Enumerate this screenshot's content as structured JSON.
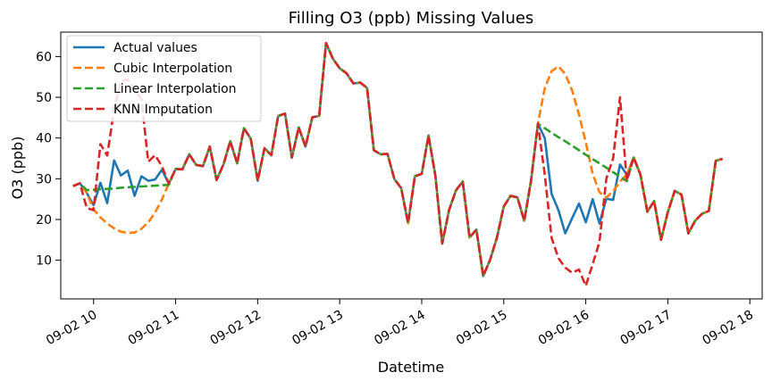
{
  "chart_data": {
    "type": "line",
    "title": "Filling O3 (ppb) Missing Values",
    "xlabel": "Datetime",
    "ylabel": "O3 (ppb)",
    "x_tick_labels": [
      "09-02 10",
      "09-02 11",
      "09-02 12",
      "09-02 13",
      "09-02 14",
      "09-02 15",
      "09-02 16",
      "09-02 17",
      "09-02 18"
    ],
    "y_ticks": [
      10,
      20,
      30,
      40,
      50,
      60
    ],
    "xlim": [
      "2021-09-02 09:36",
      "2021-09-02 18:09"
    ],
    "ylim": [
      0.5,
      66
    ],
    "grid": false,
    "legend_position": "upper left",
    "x": [
      "2021-09-02 09:45",
      "2021-09-02 09:50",
      "2021-09-02 09:55",
      "2021-09-02 10:00",
      "2021-09-02 10:05",
      "2021-09-02 10:10",
      "2021-09-02 10:15",
      "2021-09-02 10:20",
      "2021-09-02 10:25",
      "2021-09-02 10:30",
      "2021-09-02 10:35",
      "2021-09-02 10:40",
      "2021-09-02 10:45",
      "2021-09-02 10:50",
      "2021-09-02 10:55",
      "2021-09-02 11:00",
      "2021-09-02 11:05",
      "2021-09-02 11:10",
      "2021-09-02 11:15",
      "2021-09-02 11:20",
      "2021-09-02 11:25",
      "2021-09-02 11:30",
      "2021-09-02 11:35",
      "2021-09-02 11:40",
      "2021-09-02 11:45",
      "2021-09-02 11:50",
      "2021-09-02 11:55",
      "2021-09-02 12:00",
      "2021-09-02 12:05",
      "2021-09-02 12:10",
      "2021-09-02 12:15",
      "2021-09-02 12:20",
      "2021-09-02 12:25",
      "2021-09-02 12:30",
      "2021-09-02 12:35",
      "2021-09-02 12:40",
      "2021-09-02 12:45",
      "2021-09-02 12:50",
      "2021-09-02 12:55",
      "2021-09-02 13:00",
      "2021-09-02 13:05",
      "2021-09-02 13:10",
      "2021-09-02 13:15",
      "2021-09-02 13:20",
      "2021-09-02 13:25",
      "2021-09-02 13:30",
      "2021-09-02 13:35",
      "2021-09-02 13:40",
      "2021-09-02 13:45",
      "2021-09-02 13:50",
      "2021-09-02 13:55",
      "2021-09-02 14:00",
      "2021-09-02 14:05",
      "2021-09-02 14:10",
      "2021-09-02 14:15",
      "2021-09-02 14:20",
      "2021-09-02 14:25",
      "2021-09-02 14:30",
      "2021-09-02 14:35",
      "2021-09-02 14:40",
      "2021-09-02 14:45",
      "2021-09-02 14:50",
      "2021-09-02 14:55",
      "2021-09-02 15:00",
      "2021-09-02 15:05",
      "2021-09-02 15:10",
      "2021-09-02 15:15",
      "2021-09-02 15:20",
      "2021-09-02 15:25",
      "2021-09-02 15:30",
      "2021-09-02 15:35",
      "2021-09-02 15:40",
      "2021-09-02 15:45",
      "2021-09-02 15:50",
      "2021-09-02 15:55",
      "2021-09-02 16:00",
      "2021-09-02 16:05",
      "2021-09-02 16:10",
      "2021-09-02 16:15",
      "2021-09-02 16:20",
      "2021-09-02 16:25",
      "2021-09-02 16:30",
      "2021-09-02 16:35",
      "2021-09-02 16:40",
      "2021-09-02 16:45",
      "2021-09-02 16:50",
      "2021-09-02 16:55",
      "2021-09-02 17:00",
      "2021-09-02 17:05",
      "2021-09-02 17:10",
      "2021-09-02 17:15",
      "2021-09-02 17:20",
      "2021-09-02 17:25",
      "2021-09-02 17:30",
      "2021-09-02 17:35",
      "2021-09-02 17:40"
    ],
    "series": [
      {
        "name": "Actual values",
        "color": "#1f77b4",
        "dash": "solid",
        "values": [
          28.2,
          28.9,
          26.5,
          23.5,
          29.0,
          24.0,
          34.5,
          30.8,
          32.0,
          25.8,
          30.6,
          29.5,
          29.8,
          32.2,
          28.8,
          32.4,
          32.3,
          36.0,
          33.4,
          33.1,
          37.9,
          29.7,
          33.5,
          39.2,
          33.8,
          42.4,
          39.8,
          29.5,
          37.5,
          35.8,
          45.4,
          46.0,
          35.2,
          42.6,
          37.9,
          45.1,
          45.4,
          63.3,
          59.5,
          57.1,
          55.9,
          53.4,
          53.6,
          52.3,
          37.0,
          36.0,
          36.1,
          29.9,
          27.7,
          19.1,
          30.6,
          31.2,
          40.6,
          30.7,
          14.1,
          22.3,
          27.1,
          29.3,
          15.6,
          17.5,
          6.1,
          10.1,
          15.5,
          23.2,
          25.8,
          25.4,
          19.7,
          29.6,
          43.5,
          40.0,
          26.3,
          22.3,
          16.6,
          20.3,
          23.9,
          19.3,
          25.0,
          19.0,
          25.1,
          24.8,
          33.5,
          31.0,
          35.2,
          31.0,
          21.9,
          24.5,
          15.0,
          21.8,
          27.0,
          26.1,
          16.6,
          19.7,
          21.4,
          22.1,
          34.4,
          34.9
        ]
      },
      {
        "name": "Cubic Interpolation",
        "color": "#ff7f0e",
        "dash": "dashed",
        "values": [
          28.2,
          28.9,
          26.5,
          22.5,
          20.5,
          19.0,
          17.8,
          17.0,
          16.7,
          16.8,
          17.7,
          19.3,
          21.7,
          24.9,
          28.8,
          32.4,
          32.3,
          36.0,
          33.4,
          33.1,
          37.9,
          29.7,
          33.5,
          39.2,
          33.8,
          42.4,
          39.8,
          29.5,
          37.5,
          35.8,
          45.4,
          46.0,
          35.2,
          42.6,
          37.9,
          45.1,
          45.4,
          63.3,
          59.5,
          57.1,
          55.9,
          53.4,
          53.6,
          52.3,
          37.0,
          36.0,
          36.1,
          29.9,
          27.7,
          19.1,
          30.6,
          31.2,
          40.6,
          30.7,
          14.1,
          22.3,
          27.1,
          29.3,
          15.6,
          17.5,
          6.1,
          10.1,
          15.5,
          23.2,
          25.8,
          25.4,
          19.7,
          29.6,
          43.5,
          52.2,
          56.4,
          57.6,
          55.7,
          51.7,
          45.8,
          38.9,
          31.2,
          26.7,
          25.4,
          26.9,
          29.3,
          31.0,
          35.2,
          31.0,
          21.9,
          24.5,
          15.0,
          21.8,
          27.0,
          26.1,
          16.6,
          19.7,
          21.4,
          22.1,
          34.4,
          34.9
        ]
      },
      {
        "name": "Linear Interpolation",
        "color": "#2ca02c",
        "dash": "dashed",
        "values": [
          28.2,
          28.9,
          27.2,
          27.3,
          27.4,
          27.5,
          27.6,
          27.8,
          27.9,
          28.0,
          28.1,
          28.2,
          28.3,
          28.4,
          28.5,
          32.4,
          32.3,
          36.0,
          33.4,
          33.1,
          37.9,
          29.7,
          33.5,
          39.2,
          33.8,
          42.4,
          39.8,
          29.5,
          37.5,
          35.8,
          45.4,
          46.0,
          35.2,
          42.6,
          37.9,
          45.1,
          45.4,
          63.3,
          59.5,
          57.1,
          55.9,
          53.4,
          53.6,
          52.3,
          37.0,
          36.0,
          36.1,
          29.9,
          27.7,
          19.1,
          30.6,
          31.2,
          40.6,
          30.7,
          14.1,
          22.3,
          27.1,
          29.3,
          15.6,
          17.5,
          6.1,
          10.1,
          15.5,
          23.2,
          25.8,
          25.4,
          19.7,
          29.6,
          43.5,
          42.4,
          41.3,
          40.2,
          39.2,
          38.1,
          37.0,
          35.9,
          34.8,
          33.8,
          32.7,
          31.6,
          30.5,
          29.4,
          35.2,
          31.0,
          21.9,
          24.5,
          15.0,
          21.8,
          27.0,
          26.1,
          16.6,
          19.7,
          21.4,
          22.1,
          34.4,
          34.9
        ]
      },
      {
        "name": "KNN Imputation",
        "color": "#d62728",
        "dash": "dashed",
        "values": [
          28.2,
          28.9,
          22.8,
          22.3,
          38.5,
          35.7,
          47.0,
          54.0,
          54.4,
          51.9,
          49.5,
          34.2,
          35.8,
          33.1,
          28.8,
          32.4,
          32.3,
          36.0,
          33.4,
          33.1,
          37.9,
          29.7,
          33.5,
          39.2,
          33.8,
          42.4,
          39.8,
          29.5,
          37.5,
          35.8,
          45.4,
          46.0,
          35.2,
          42.6,
          37.9,
          45.1,
          45.4,
          63.3,
          59.5,
          57.1,
          55.9,
          53.4,
          53.6,
          52.3,
          37.0,
          36.0,
          36.1,
          29.9,
          27.7,
          19.1,
          30.6,
          31.2,
          40.6,
          30.7,
          14.1,
          22.3,
          27.1,
          29.3,
          15.6,
          17.5,
          6.1,
          10.1,
          15.5,
          23.2,
          25.8,
          25.4,
          19.7,
          29.6,
          43.5,
          31.0,
          15.5,
          10.5,
          8.2,
          6.9,
          7.7,
          3.7,
          9.0,
          14.5,
          30.0,
          35.0,
          50.0,
          29.5,
          35.2,
          31.0,
          21.9,
          24.5,
          15.0,
          21.8,
          27.0,
          26.1,
          16.6,
          19.7,
          21.4,
          22.1,
          34.4,
          34.9
        ]
      }
    ]
  }
}
